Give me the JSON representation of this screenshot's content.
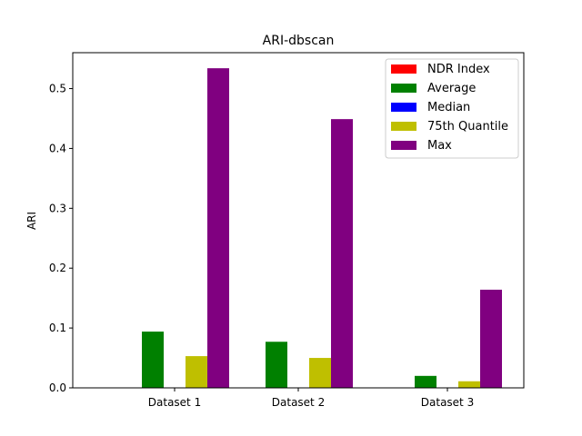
{
  "chart_data": {
    "type": "bar",
    "title": "ARI-dbscan",
    "xlabel": "",
    "ylabel": "ARI",
    "categories": [
      "Dataset 1",
      "Dataset 2",
      "Dataset 3"
    ],
    "ylim": [
      0,
      0.56
    ],
    "yticks": [
      0.0,
      0.1,
      0.2,
      0.3,
      0.4,
      0.5
    ],
    "ytick_labels": [
      "0.0",
      "0.1",
      "0.2",
      "0.3",
      "0.4",
      "0.5"
    ],
    "legend_position": "top-right",
    "grid": false,
    "series": [
      {
        "name": "NDR Index",
        "color": "#ff0000",
        "values": [
          0.0,
          0.0,
          0.0
        ]
      },
      {
        "name": "Average",
        "color": "#008000",
        "values": [
          0.094,
          0.077,
          0.02
        ]
      },
      {
        "name": "Median",
        "color": "#0000ff",
        "values": [
          0.0,
          0.0,
          0.0
        ]
      },
      {
        "name": "75th Quantile",
        "color": "#bfbf00",
        "values": [
          0.053,
          0.05,
          0.011
        ]
      },
      {
        "name": "Max",
        "color": "#800080",
        "values": [
          0.534,
          0.449,
          0.164
        ]
      }
    ]
  }
}
